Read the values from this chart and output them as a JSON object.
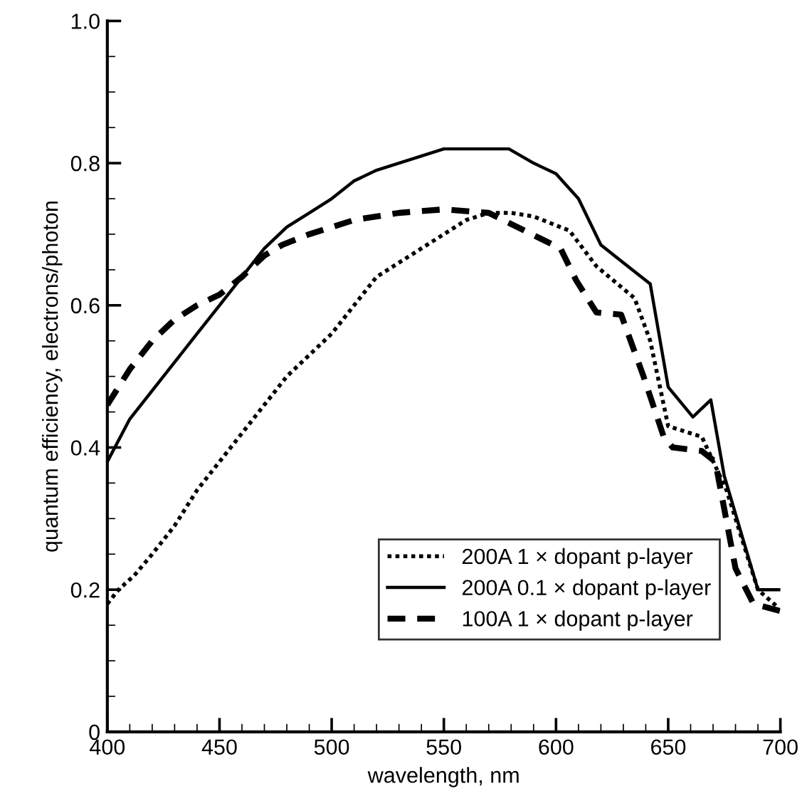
{
  "chart_data": {
    "type": "line",
    "xlabel": "wavelength, nm",
    "ylabel": "quantum efficiency, electrons/photon",
    "xlim": [
      400,
      700
    ],
    "ylim": [
      0,
      1.0
    ],
    "xticks": [
      400,
      450,
      500,
      550,
      600,
      650,
      700
    ],
    "yticks": [
      0,
      0.2,
      0.4,
      0.6,
      0.8,
      {
        "value": 1.0,
        "label": "1.0"
      }
    ],
    "grid": false,
    "legend": "bottom right",
    "marker": "none",
    "series": [
      {
        "name": "200A 1 × dopant p-layer",
        "color": "#000000",
        "line_style": "dotted",
        "x": [
          400,
          405,
          412,
          420,
          430,
          440,
          450,
          460,
          470,
          480,
          490,
          500,
          510,
          520,
          530,
          540,
          550,
          560,
          570,
          580,
          590,
          606,
          618,
          635,
          642,
          650,
          665,
          676,
          690,
          699
        ],
        "values": [
          0.18,
          0.2,
          0.22,
          0.25,
          0.29,
          0.34,
          0.38,
          0.42,
          0.46,
          0.5,
          0.53,
          0.56,
          0.6,
          0.64,
          0.66,
          0.68,
          0.7,
          0.72,
          0.73,
          0.73,
          0.725,
          0.705,
          0.655,
          0.61,
          0.55,
          0.43,
          0.415,
          0.34,
          0.2,
          0.175
        ]
      },
      {
        "name": "200A 0.1 × dopant p-layer",
        "color": "#000000",
        "line_style": "solid",
        "x": [
          400,
          410,
          420,
          430,
          440,
          450,
          460,
          470,
          480,
          490,
          500,
          510,
          520,
          530,
          540,
          550,
          560,
          579,
          590,
          600,
          610,
          620,
          630,
          642,
          650,
          661,
          669,
          675,
          690,
          700
        ],
        "values": [
          0.38,
          0.44,
          0.48,
          0.52,
          0.56,
          0.6,
          0.64,
          0.68,
          0.71,
          0.73,
          0.75,
          0.775,
          0.79,
          0.8,
          0.81,
          0.82,
          0.82,
          0.82,
          0.8,
          0.785,
          0.75,
          0.685,
          0.66,
          0.63,
          0.485,
          0.443,
          0.467,
          0.36,
          0.2,
          0.2
        ]
      },
      {
        "name": "100A 1 × dopant p-layer",
        "color": "#000000",
        "line_style": "dashed",
        "x": [
          400,
          410,
          420,
          430,
          440,
          450,
          460,
          470,
          478,
          490,
          500,
          510,
          530,
          550,
          570,
          586,
          602,
          609,
          618,
          629,
          639,
          648,
          652,
          665,
          671,
          680,
          688,
          700
        ],
        "values": [
          0.46,
          0.51,
          0.55,
          0.58,
          0.6,
          0.615,
          0.64,
          0.67,
          0.685,
          0.7,
          0.71,
          0.72,
          0.73,
          0.735,
          0.73,
          0.705,
          0.68,
          0.635,
          0.59,
          0.587,
          0.5,
          0.415,
          0.4,
          0.395,
          0.38,
          0.23,
          0.18,
          0.17
        ]
      }
    ]
  }
}
